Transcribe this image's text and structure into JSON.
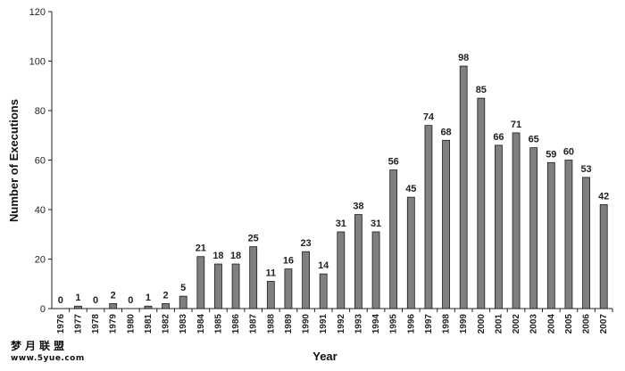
{
  "chart_data": {
    "type": "bar",
    "xlabel": "Year",
    "ylabel": "Number of Executions",
    "ylim": [
      0,
      120
    ],
    "yticks": [
      0,
      20,
      40,
      60,
      80,
      100,
      120
    ],
    "grid": false,
    "bar_color": "#7f7f7f",
    "categories": [
      "1976",
      "1977",
      "1978",
      "1979",
      "1980",
      "1981",
      "1982",
      "1983",
      "1984",
      "1985",
      "1986",
      "1987",
      "1988",
      "1989",
      "1990",
      "1991",
      "1992",
      "1993",
      "1994",
      "1995",
      "1996",
      "1997",
      "1998",
      "1999",
      "2000",
      "2001",
      "2002",
      "2003",
      "2004",
      "2005",
      "2006",
      "2007"
    ],
    "values": [
      0,
      1,
      0,
      2,
      0,
      1,
      2,
      5,
      21,
      18,
      18,
      25,
      11,
      16,
      23,
      14,
      31,
      38,
      31,
      56,
      45,
      74,
      68,
      98,
      85,
      66,
      71,
      65,
      59,
      60,
      53,
      42
    ]
  },
  "watermark": {
    "text": "梦月联盟",
    "url": "www.5yue.com"
  }
}
